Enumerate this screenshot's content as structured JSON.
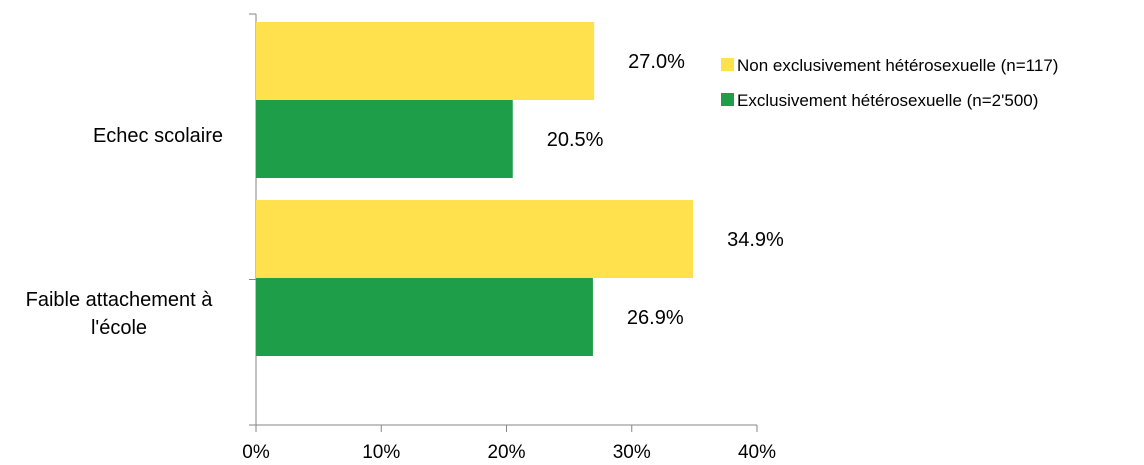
{
  "chart_data": {
    "type": "bar",
    "orientation": "horizontal",
    "categories": [
      [
        "Echec scolaire"
      ],
      [
        "Faible attachement à",
        "l'école"
      ]
    ],
    "series": [
      {
        "name": "Non exclusivement hétérosexuelle (n=117)",
        "color": "#FFE14D",
        "values": [
          27.0,
          34.9
        ],
        "labels": [
          "27.0%",
          "34.9%"
        ]
      },
      {
        "name": "Exclusivement hétérosexuelle (n=2'500)",
        "color": "#1F9E4A",
        "values": [
          20.5,
          26.9
        ],
        "labels": [
          "20.5%",
          "26.9%"
        ]
      }
    ],
    "xlim": [
      0,
      40
    ],
    "xticks": [
      0,
      10,
      20,
      30,
      40
    ],
    "xtick_labels": [
      "0%",
      "10%",
      "20%",
      "30%",
      "40%"
    ],
    "legend_position": "right",
    "grid": false
  }
}
